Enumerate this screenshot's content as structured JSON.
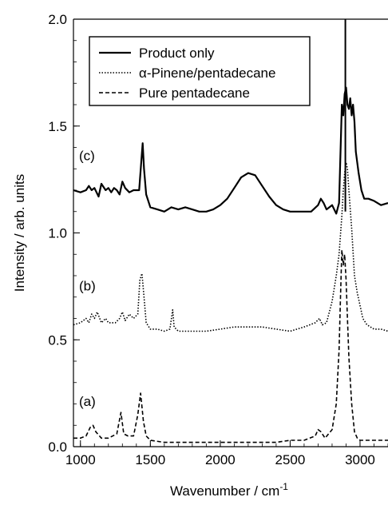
{
  "chart_data": {
    "type": "line",
    "xlabel": "Wavenumber / cm",
    "xlabel_superscript": "-1",
    "ylabel": "Intensity / arb. units",
    "xlim": [
      950,
      3200
    ],
    "ylim": [
      0.0,
      2.0
    ],
    "xticks": [
      {
        "value": 1000,
        "label": "1000"
      },
      {
        "value": 1500,
        "label": "1500"
      },
      {
        "value": 2000,
        "label": "2000"
      },
      {
        "value": 2500,
        "label": "2500"
      },
      {
        "value": 3000,
        "label": "3000"
      }
    ],
    "yticks": [
      {
        "value": 0.0,
        "label": "0.0"
      },
      {
        "value": 0.5,
        "label": "0.5"
      },
      {
        "value": 1.0,
        "label": "1.0"
      },
      {
        "value": 1.5,
        "label": "1.5"
      },
      {
        "value": 2.0,
        "label": "2.0"
      }
    ],
    "legend_position": "top-left",
    "series": [
      {
        "name": "Product only",
        "style": "solid",
        "color": "#000000",
        "label": "(c)",
        "x": [
          950,
          1000,
          1040,
          1060,
          1080,
          1100,
          1130,
          1150,
          1180,
          1200,
          1220,
          1240,
          1260,
          1280,
          1300,
          1320,
          1350,
          1380,
          1400,
          1420,
          1435,
          1445,
          1455,
          1470,
          1500,
          1550,
          1600,
          1650,
          1700,
          1750,
          1800,
          1850,
          1900,
          1950,
          2000,
          2050,
          2100,
          2150,
          2200,
          2250,
          2300,
          2350,
          2400,
          2450,
          2500,
          2550,
          2600,
          2650,
          2700,
          2720,
          2740,
          2760,
          2800,
          2830,
          2850,
          2870,
          2880,
          2890,
          2900,
          2910,
          2920,
          2930,
          2940,
          2950,
          2960,
          2970,
          2990,
          3010,
          3030,
          3060,
          3100,
          3150,
          3200
        ],
        "y": [
          1.2,
          1.19,
          1.2,
          1.22,
          1.2,
          1.21,
          1.17,
          1.23,
          1.2,
          1.21,
          1.19,
          1.21,
          1.2,
          1.18,
          1.24,
          1.21,
          1.19,
          1.2,
          1.2,
          1.2,
          1.33,
          1.42,
          1.3,
          1.18,
          1.12,
          1.11,
          1.1,
          1.12,
          1.11,
          1.12,
          1.11,
          1.1,
          1.1,
          1.11,
          1.13,
          1.16,
          1.21,
          1.26,
          1.28,
          1.27,
          1.22,
          1.17,
          1.13,
          1.11,
          1.1,
          1.1,
          1.1,
          1.1,
          1.13,
          1.16,
          1.14,
          1.11,
          1.13,
          1.09,
          1.14,
          1.6,
          1.55,
          1.65,
          1.68,
          1.6,
          1.58,
          1.63,
          1.55,
          1.6,
          1.52,
          1.38,
          1.28,
          1.2,
          1.16,
          1.16,
          1.15,
          1.13,
          1.14
        ]
      },
      {
        "name": "α-Pinene/pentadecane",
        "style": "dotted",
        "color": "#000000",
        "label": "(b)",
        "x": [
          950,
          1000,
          1040,
          1060,
          1080,
          1100,
          1120,
          1150,
          1180,
          1200,
          1250,
          1280,
          1300,
          1320,
          1350,
          1380,
          1410,
          1425,
          1440,
          1455,
          1470,
          1500,
          1550,
          1600,
          1640,
          1660,
          1670,
          1700,
          1800,
          1900,
          2000,
          2100,
          2200,
          2300,
          2400,
          2500,
          2600,
          2680,
          2710,
          2730,
          2760,
          2800,
          2830,
          2850,
          2870,
          2880,
          2890,
          2900,
          2910,
          2920,
          2940,
          2960,
          2980,
          3000,
          3020,
          3050,
          3100,
          3150,
          3200
        ],
        "y": [
          0.57,
          0.58,
          0.6,
          0.58,
          0.62,
          0.6,
          0.63,
          0.58,
          0.6,
          0.58,
          0.58,
          0.6,
          0.63,
          0.59,
          0.62,
          0.6,
          0.62,
          0.78,
          0.81,
          0.7,
          0.58,
          0.55,
          0.55,
          0.54,
          0.55,
          0.64,
          0.56,
          0.54,
          0.54,
          0.54,
          0.55,
          0.56,
          0.56,
          0.56,
          0.55,
          0.54,
          0.56,
          0.58,
          0.6,
          0.57,
          0.58,
          0.68,
          0.8,
          0.9,
          1.08,
          1.2,
          1.28,
          1.33,
          1.3,
          1.2,
          1.02,
          0.8,
          0.72,
          0.66,
          0.6,
          0.57,
          0.55,
          0.55,
          0.54
        ]
      },
      {
        "name": "Pure pentadecane",
        "style": "dashed",
        "color": "#000000",
        "label": "(a)",
        "x": [
          950,
          1000,
          1040,
          1070,
          1090,
          1110,
          1150,
          1200,
          1260,
          1290,
          1310,
          1340,
          1380,
          1410,
          1430,
          1450,
          1470,
          1500,
          1600,
          1700,
          1800,
          1900,
          2000,
          2100,
          2200,
          2300,
          2400,
          2500,
          2600,
          2680,
          2700,
          2720,
          2750,
          2800,
          2830,
          2850,
          2860,
          2870,
          2880,
          2890,
          2900,
          2910,
          2920,
          2940,
          2960,
          2980,
          3000,
          3050,
          3100,
          3200
        ],
        "y": [
          0.04,
          0.04,
          0.05,
          0.09,
          0.1,
          0.07,
          0.04,
          0.04,
          0.06,
          0.16,
          0.06,
          0.05,
          0.05,
          0.15,
          0.25,
          0.12,
          0.05,
          0.03,
          0.02,
          0.02,
          0.02,
          0.02,
          0.02,
          0.02,
          0.02,
          0.02,
          0.02,
          0.03,
          0.03,
          0.05,
          0.08,
          0.07,
          0.04,
          0.08,
          0.2,
          0.45,
          0.7,
          0.92,
          0.85,
          0.9,
          0.78,
          0.6,
          0.42,
          0.2,
          0.07,
          0.04,
          0.03,
          0.03,
          0.03,
          0.03
        ]
      }
    ],
    "annotations": [
      {
        "text": "(c)",
        "x": 990,
        "y": 1.34
      },
      {
        "text": "(b)",
        "x": 990,
        "y": 0.73
      },
      {
        "text": "(a)",
        "x": 990,
        "y": 0.19
      }
    ]
  }
}
